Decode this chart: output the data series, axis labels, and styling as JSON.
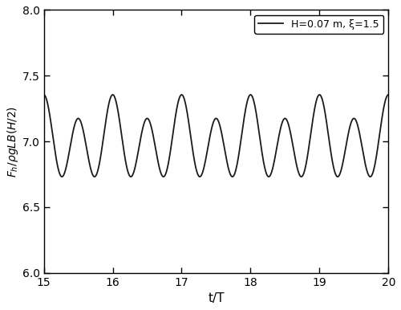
{
  "xlim": [
    15,
    20
  ],
  "ylim": [
    6.0,
    8.0
  ],
  "xticks": [
    15,
    16,
    17,
    18,
    19,
    20
  ],
  "yticks": [
    6.0,
    6.5,
    7.0,
    7.5,
    8.0
  ],
  "xlabel": "t/T",
  "ylabel": "$F_h/\\rho gLB(H/2)$",
  "legend_label": "H=0.07 m, ξ=1.5",
  "line_color": "#1a1a1a",
  "line_width": 1.3,
  "background_color": "#ffffff",
  "mean_value": 7.0,
  "A1": 0.265,
  "f1": 2.0,
  "A2": 0.09,
  "f2": 1.0,
  "phase1": 1.5707963,
  "phase2": 1.5707963,
  "t_start": 15,
  "t_end": 20,
  "n_points": 3000
}
